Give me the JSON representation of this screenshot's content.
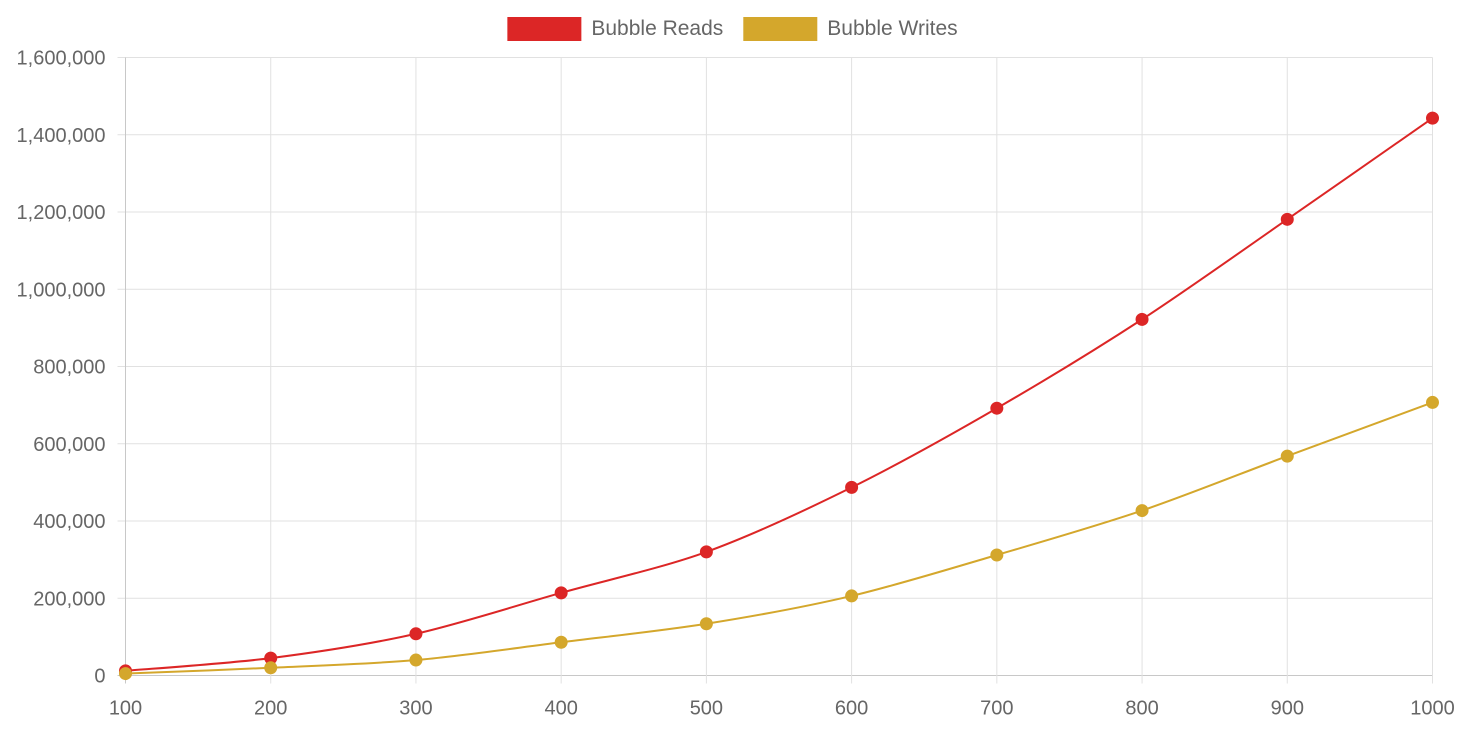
{
  "chart_data": {
    "type": "line",
    "title": "",
    "xlabel": "",
    "ylabel": "",
    "x": [
      100,
      200,
      300,
      400,
      500,
      600,
      700,
      800,
      900,
      1000
    ],
    "x_tick_labels": [
      "100",
      "200",
      "300",
      "400",
      "500",
      "600",
      "700",
      "800",
      "900",
      "1000"
    ],
    "ylim": [
      0,
      1600000
    ],
    "y_ticks": [
      0,
      200000,
      400000,
      600000,
      800000,
      1000000,
      1200000,
      1400000,
      1600000
    ],
    "y_tick_labels": [
      "0",
      "200,000",
      "400,000",
      "600,000",
      "800,000",
      "1,000,000",
      "1,200,000",
      "1,400,000",
      "1,600,000"
    ],
    "grid": true,
    "legend_position": "top-center",
    "series": [
      {
        "name": "Bubble Reads",
        "color": "#dc2626",
        "values": [
          12000,
          45000,
          108000,
          214000,
          320000,
          487000,
          692000,
          922000,
          1181000,
          1443000
        ]
      },
      {
        "name": "Bubble Writes",
        "color": "#d4a72c",
        "values": [
          5000,
          20000,
          40000,
          86000,
          134000,
          206000,
          312000,
          427000,
          568000,
          707000
        ]
      }
    ]
  }
}
